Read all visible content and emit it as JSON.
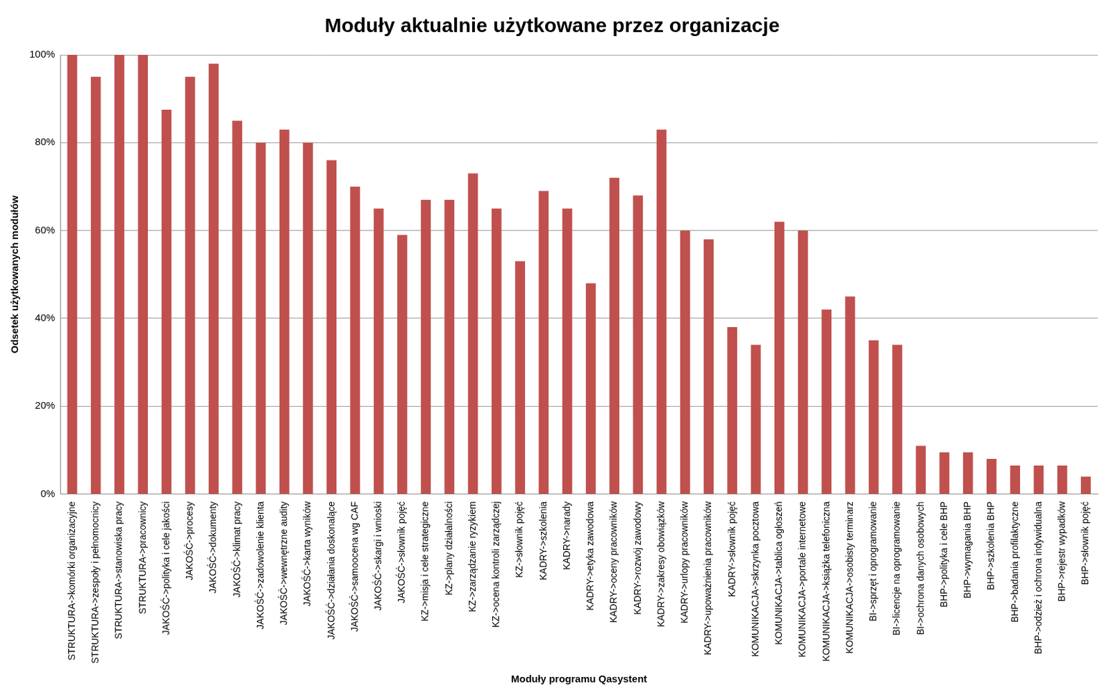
{
  "chart_data": {
    "type": "bar",
    "title": "Moduły aktualnie użytkowane przez organizacje",
    "x_label": "Moduły programu Qasystent",
    "y_label": "Odsetek użytkowanych modułów",
    "categories": [
      "STRUKTURA->komórki organizacyjne",
      "STRUKTURA->zespoły i pełnomocnicy",
      "STRUKTURA->stanowiska pracy",
      "STRUKTURA->pracownicy",
      "JAKOŚĆ->polityka i cele jakości",
      "JAKOŚĆ->procesy",
      "JAKOŚĆ->dokumenty",
      "JAKOŚĆ->klimat pracy",
      "JAKOŚĆ->zadowolenie klienta",
      "JAKOŚĆ->wewnętrzne audity",
      "JAKOŚĆ->karta wyników",
      "JAKOŚĆ->działania doskonalące",
      "JAKOŚĆ->samoocena wg CAF",
      "JAKOŚĆ->skargi i wnioski",
      "JAKOŚĆ->słownik pojęć",
      "KZ->misja i cele strategiczne",
      "KZ->plany działalności",
      "KZ->zarządzanie ryzykiem",
      "KZ->ocena kontroli zarządczej",
      "KZ->słownik pojęć",
      "KADRY->szkolenia",
      "KADRY->narady",
      "KADRY->etyka zawodowa",
      "KADRY->oceny pracowników",
      "KADRY->rozwój zawodowy",
      "KADRY->zakresy obowiązków",
      "KADRY->urlopy pracowników",
      "KADRY->upoważnienia pracowników",
      "KADRY->słownik pojęć",
      "KOMUNIKACJA->skrzynka pocztowa",
      "KOMUNIKACJA->tablica ogłoszeń",
      "KOMUNIKACJA->portale internetowe",
      "KOMUNIKACJA->książka telefoniczna",
      "KOMUNIKACJA->osobisty terminarz",
      "BI->sprzęt i oprogramowanie",
      "BI->licencje na oprogramowanie",
      "BI->ochrona danych osobowych",
      "BHP->polityka i cele BHP",
      "BHP->wymagania BHP",
      "BHP->szkolenia BHP",
      "BHP->badania profilaktyczne",
      "BHP->odzież i ochrona indywidualna",
      "BHP->rejestr wypadków",
      "BHP->słownik pojęć"
    ],
    "values": [
      100,
      95,
      100,
      100,
      87.5,
      95,
      98,
      85,
      80,
      83,
      80,
      76,
      70,
      65,
      59,
      67,
      67,
      73,
      65,
      53,
      69,
      65,
      48,
      72,
      68,
      83,
      60,
      58,
      38,
      34,
      62,
      60,
      42,
      45,
      35,
      34,
      11,
      9.5,
      9.5,
      8,
      6.5,
      6.5,
      6.5,
      4
    ],
    "color": "#c0504d",
    "ylim": [
      0,
      100
    ],
    "yticks": [
      {
        "value": 0,
        "label": "0%"
      },
      {
        "value": 20,
        "label": "20%"
      },
      {
        "value": 40,
        "label": "40%"
      },
      {
        "value": 60,
        "label": "60%"
      },
      {
        "value": 80,
        "label": "80%"
      },
      {
        "value": 100,
        "label": "100%"
      }
    ],
    "grid": true
  }
}
